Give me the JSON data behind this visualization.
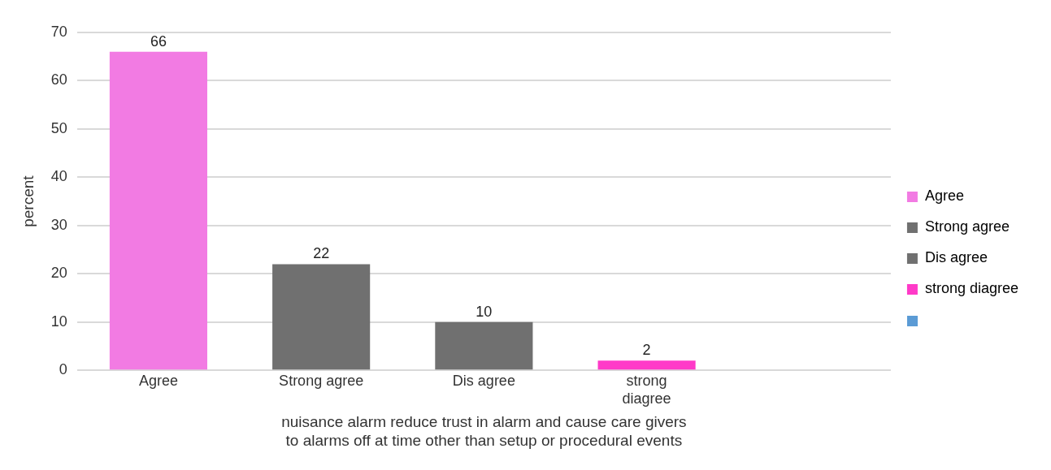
{
  "chart_data": {
    "type": "bar",
    "categories": [
      "Agree",
      "Strong agree",
      "Dis agree",
      "strong diagree",
      null
    ],
    "series": [
      {
        "name": "Agree",
        "color": "#f27be3",
        "values": [
          66,
          null,
          null,
          null,
          null
        ]
      },
      {
        "name": "Strong agree",
        "color": "#707070",
        "values": [
          null,
          22,
          null,
          null,
          null
        ]
      },
      {
        "name": "Dis agree",
        "color": "#707070",
        "values": [
          null,
          null,
          10,
          null,
          null
        ]
      },
      {
        "name": "strong diagree",
        "color": "#ff3ac8",
        "values": [
          null,
          null,
          null,
          2,
          null
        ]
      }
    ],
    "ylabel": "percent",
    "xlabel": "nuisance alarm reduce trust in alarm and cause care givers to alarms off at time other than setup or procedural events",
    "ylim": [
      0,
      70
    ],
    "yticks": [
      0,
      10,
      20,
      30,
      40,
      50,
      60,
      70
    ],
    "grid": "y",
    "legend": "right",
    "data_labels": true
  }
}
